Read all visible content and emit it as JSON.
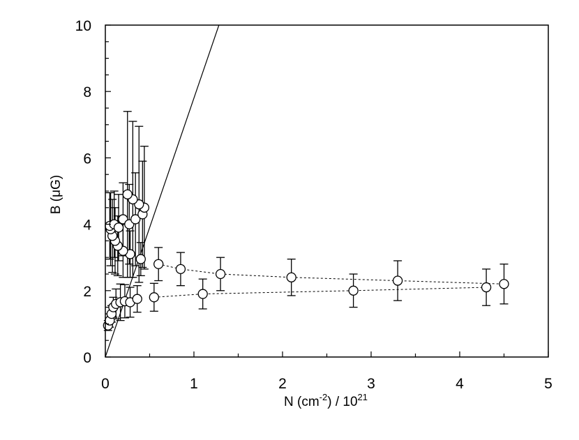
{
  "chart_data": {
    "type": "scatter",
    "title": "",
    "xlabel": {
      "base": "N (cm",
      "sup1": "-2",
      "mid": ") / 10",
      "sup2": "21"
    },
    "ylabel": "B (μG)",
    "xlim": [
      0,
      5
    ],
    "ylim": [
      0,
      10
    ],
    "x_ticks": [
      "0",
      "1",
      "2",
      "3",
      "4",
      "5"
    ],
    "y_ticks": [
      "0",
      "2",
      "4",
      "6",
      "8",
      "10"
    ],
    "grid": false,
    "legend": "none",
    "reference_line": {
      "slope": 7.8,
      "intercept": 0
    },
    "series": [
      {
        "points": [
          {
            "x": 0.03,
            "y": 0.95,
            "err": 0.15
          },
          {
            "x": 0.05,
            "y": 1.1,
            "err": 0.2
          },
          {
            "x": 0.07,
            "y": 1.3,
            "err": 0.25
          },
          {
            "x": 0.09,
            "y": 1.5,
            "err": 0.3
          },
          {
            "x": 0.12,
            "y": 1.6,
            "err": 0.45
          },
          {
            "x": 0.17,
            "y": 1.65,
            "err": 0.55
          },
          {
            "x": 0.22,
            "y": 1.68,
            "err": 0.5
          },
          {
            "x": 0.28,
            "y": 1.65,
            "err": 0.45
          },
          {
            "x": 0.36,
            "y": 1.75,
            "err": 0.4
          },
          {
            "x": 0.55,
            "y": 1.8,
            "err": 0.42
          },
          {
            "x": 1.1,
            "y": 1.9,
            "err": 0.45
          },
          {
            "x": 2.8,
            "y": 2.0,
            "err": 0.5
          },
          {
            "x": 4.3,
            "y": 2.1,
            "err": 0.55
          }
        ]
      },
      {
        "points": [
          {
            "x": 4.5,
            "y": 2.2,
            "err": 0.6
          },
          {
            "x": 3.3,
            "y": 2.3,
            "err": 0.6
          },
          {
            "x": 2.1,
            "y": 2.4,
            "err": 0.55
          },
          {
            "x": 1.3,
            "y": 2.5,
            "err": 0.5
          },
          {
            "x": 0.85,
            "y": 2.65,
            "err": 0.5
          },
          {
            "x": 0.6,
            "y": 2.8,
            "err": 0.5
          },
          {
            "x": 0.4,
            "y": 2.95,
            "err": 0.5
          },
          {
            "x": 0.28,
            "y": 3.1,
            "err": 0.7
          },
          {
            "x": 0.2,
            "y": 3.2,
            "err": 0.8
          },
          {
            "x": 0.14,
            "y": 3.35,
            "err": 0.9
          },
          {
            "x": 0.11,
            "y": 3.5,
            "err": 1.0
          },
          {
            "x": 0.08,
            "y": 3.65,
            "err": 1.1
          },
          {
            "x": 0.06,
            "y": 3.85,
            "err": 1.1
          },
          {
            "x": 0.05,
            "y": 3.95,
            "err": 1.0
          },
          {
            "x": 0.1,
            "y": 4.0,
            "err": 1.0
          },
          {
            "x": 0.15,
            "y": 3.9,
            "err": 1.0
          },
          {
            "x": 0.2,
            "y": 4.15,
            "err": 1.1
          },
          {
            "x": 0.27,
            "y": 4.0,
            "err": 1.2
          },
          {
            "x": 0.34,
            "y": 4.15,
            "err": 1.4
          },
          {
            "x": 0.42,
            "y": 4.3,
            "err": 1.6
          },
          {
            "x": 0.44,
            "y": 4.5,
            "err": 1.85
          },
          {
            "x": 0.38,
            "y": 4.6,
            "err": 2.35
          },
          {
            "x": 0.31,
            "y": 4.75,
            "err": 2.35
          },
          {
            "x": 0.25,
            "y": 4.9,
            "err": 2.5
          }
        ]
      }
    ]
  }
}
